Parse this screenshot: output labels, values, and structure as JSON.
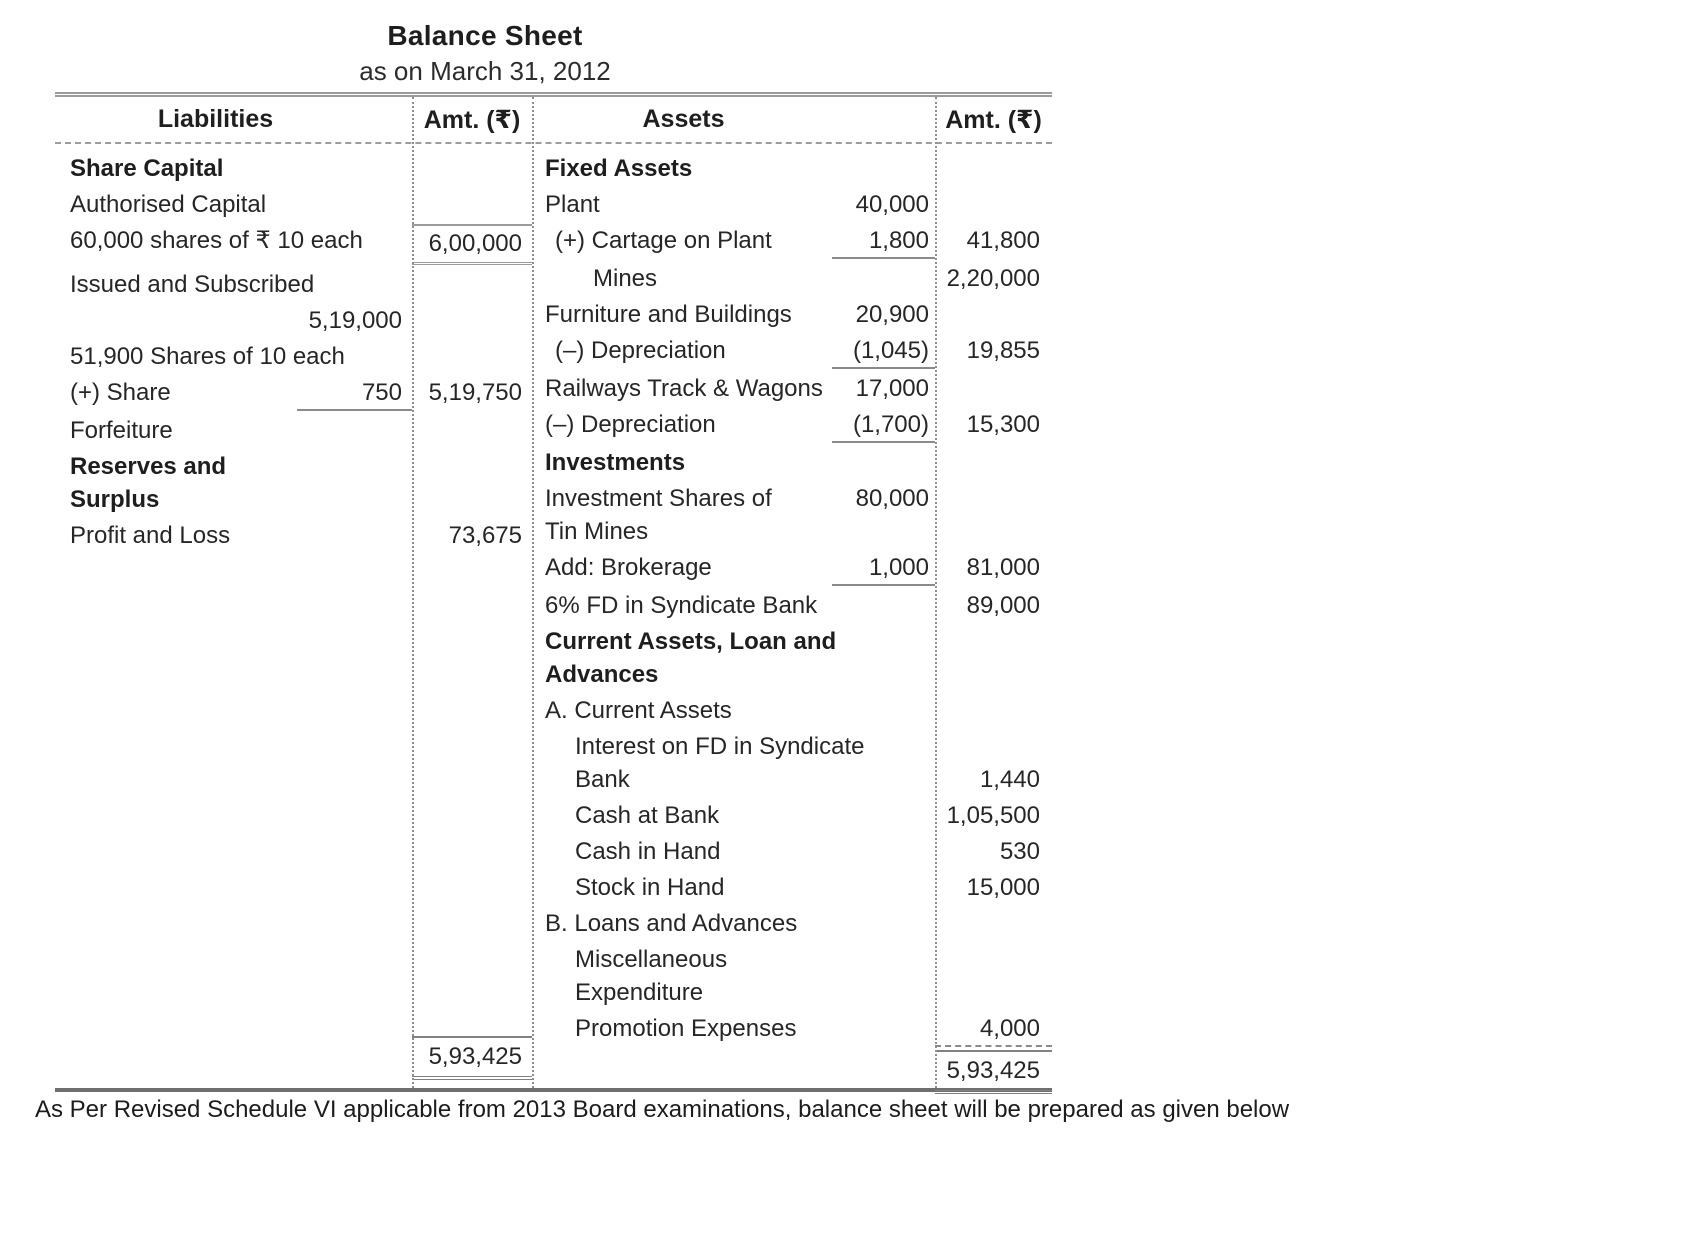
{
  "title": "Balance Sheet",
  "subtitle": "as on March 31, 2012",
  "header": {
    "liabilities": "Liabilities",
    "amt_left": "Amt. (₹)",
    "assets": "Assets",
    "amt_right": "Amt. (₹)"
  },
  "liabilities": {
    "rows": [
      {
        "label": "Share Capital"
      },
      {
        "label": "Authorised Capital"
      },
      {
        "label": "60,000 shares of ₹ 10 each",
        "amt": "6,00,000"
      },
      {
        "label": "Issued and Subscribed"
      },
      {
        "sub": "5,19,000"
      },
      {
        "label": "51,900 Shares of 10 each"
      },
      {
        "label": "(+) Share",
        "sub": "750",
        "amt": "5,19,750"
      },
      {
        "label": "Forfeiture"
      },
      {
        "label": "Reserves and Surplus"
      },
      {
        "label": "Profit and Loss",
        "amt": "73,675"
      }
    ],
    "total": "5,93,425"
  },
  "assets": {
    "rows": [
      {
        "label": "Fixed Assets"
      },
      {
        "label": "Plant",
        "sub": "40,000"
      },
      {
        "label": "(+) Cartage on Plant",
        "sub": "1,800",
        "amt": "41,800"
      },
      {
        "label": "Mines",
        "amt": "2,20,000"
      },
      {
        "label": "Furniture and Buildings",
        "sub": "20,900"
      },
      {
        "label": "(–) Depreciation",
        "sub": "(1,045)",
        "amt": "19,855"
      },
      {
        "label": "Railways Track & Wagons",
        "sub": "17,000"
      },
      {
        "label": "(–) Depreciation",
        "sub": "(1,700)",
        "amt": "15,300"
      },
      {
        "label": "Investments"
      },
      {
        "label": "Investment Shares of Tin Mines",
        "sub": "80,000"
      },
      {
        "label": "Add: Brokerage",
        "sub": "1,000",
        "amt": "81,000"
      },
      {
        "label": "6% FD in Syndicate Bank",
        "amt": "89,000"
      },
      {
        "label": "Current Assets, Loan and Advances"
      },
      {
        "label": "A. Current Assets"
      },
      {
        "label": "Interest on FD in Syndicate Bank",
        "amt": "1,440"
      },
      {
        "label": "Cash at Bank",
        "amt": "1,05,500"
      },
      {
        "label": "Cash in Hand",
        "amt": "530"
      },
      {
        "label": "Stock in Hand",
        "amt": "15,000"
      },
      {
        "label": "B. Loans and Advances"
      },
      {
        "label": "Miscellaneous Expenditure"
      },
      {
        "label": "Promotion Expenses",
        "amt": "4,000"
      }
    ],
    "total": "5,93,425"
  },
  "footnote": "As Per Revised Schedule VI applicable from 2013 Board examinations, balance sheet will be prepared as given below"
}
